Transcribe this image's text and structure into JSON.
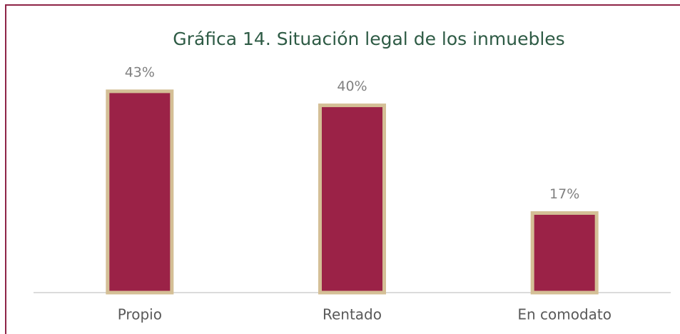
{
  "chart_data": {
    "type": "bar",
    "title": "Gráfica 14. Situación legal de los inmuebles",
    "categories": [
      "Propio",
      "Rentado",
      "En comodato"
    ],
    "values": [
      43,
      40,
      17
    ],
    "value_labels": [
      "43%",
      "40%",
      "17%"
    ],
    "color": "#9b2247",
    "edge_color": "#d4bf96"
  }
}
